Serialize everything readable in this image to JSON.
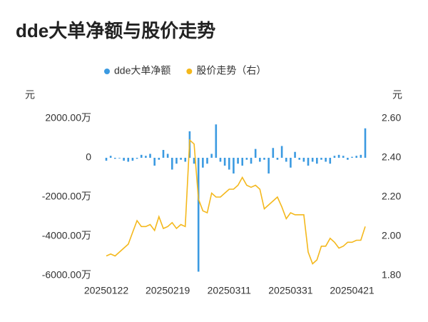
{
  "chart_data": {
    "type": "bar-line",
    "title": "dde大单净额与股价走势",
    "y_unit": "元",
    "y2_unit": "元",
    "categories": [
      "20250122",
      null,
      null,
      null,
      null,
      null,
      null,
      null,
      null,
      null,
      null,
      null,
      null,
      null,
      "20250219",
      null,
      null,
      null,
      null,
      null,
      null,
      null,
      null,
      null,
      null,
      null,
      null,
      null,
      "20250311",
      null,
      null,
      null,
      null,
      null,
      null,
      null,
      null,
      null,
      null,
      null,
      null,
      null,
      "20250331",
      null,
      null,
      null,
      null,
      null,
      null,
      null,
      null,
      null,
      null,
      null,
      null,
      null,
      "20250421",
      null,
      null,
      null
    ],
    "series": [
      {
        "name": "dde大单净额",
        "type": "bar",
        "color": "#3b9ae1",
        "values": [
          -150,
          100,
          -50,
          -30,
          -150,
          -200,
          -150,
          -50,
          150,
          100,
          200,
          -400,
          -100,
          400,
          200,
          -600,
          -300,
          -100,
          -200,
          1350,
          -300,
          -5800,
          -500,
          -300,
          200,
          1700,
          -200,
          -400,
          -600,
          -800,
          -300,
          -400,
          -100,
          -300,
          450,
          -200,
          -100,
          -800,
          500,
          -100,
          600,
          -200,
          -500,
          300,
          -100,
          -200,
          -400,
          -200,
          -300,
          -100,
          -200,
          -300,
          100,
          150,
          100,
          -100,
          50,
          100,
          150,
          1500
        ]
      },
      {
        "name": "股价走势（右）",
        "type": "line",
        "axis": "y2",
        "color": "#f4b81c",
        "values": [
          1.9,
          1.91,
          1.9,
          1.92,
          1.94,
          1.96,
          2.02,
          2.08,
          2.05,
          2.05,
          2.06,
          2.03,
          2.1,
          2.04,
          2.05,
          2.07,
          2.04,
          2.06,
          2.05,
          2.49,
          2.47,
          2.19,
          2.13,
          2.12,
          2.22,
          2.2,
          2.2,
          2.22,
          2.24,
          2.24,
          2.26,
          2.3,
          2.26,
          2.25,
          2.26,
          2.24,
          2.14,
          2.16,
          2.18,
          2.2,
          2.15,
          2.09,
          2.12,
          2.11,
          2.11,
          2.11,
          1.92,
          1.86,
          1.88,
          1.95,
          1.95,
          1.99,
          1.97,
          1.94,
          1.95,
          1.97,
          1.97,
          1.98,
          1.98,
          2.05
        ]
      }
    ],
    "ylim": [
      -6000,
      2000
    ],
    "yticks": [
      {
        "value": 2000,
        "label": "2000.00万"
      },
      0,
      {
        "value": -2000,
        "label": "-2000.00万"
      },
      {
        "value": -4000,
        "label": "-4000.00万"
      },
      {
        "value": -6000,
        "label": "-6000.00万"
      }
    ],
    "y2lim": [
      1.8,
      2.6
    ],
    "y2ticks": [
      {
        "value": 2.6,
        "label": "2.60"
      },
      {
        "value": 2.4,
        "label": "2.40"
      },
      {
        "value": 2.2,
        "label": "2.20"
      },
      {
        "value": 2.0,
        "label": "2.00"
      },
      {
        "value": 1.8,
        "label": "1.80"
      }
    ]
  }
}
